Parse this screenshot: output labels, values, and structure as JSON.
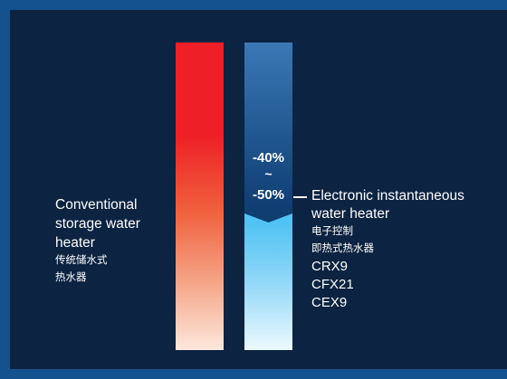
{
  "conventional": {
    "en_lines": [
      "Conventional",
      "storage water",
      "heater"
    ],
    "zh_lines": [
      "传统储水式",
      "热水器"
    ]
  },
  "savings": {
    "from": "-40%",
    "tilde": "~",
    "to": "-50%"
  },
  "electronic": {
    "en_lines": [
      "Electronic instantaneous",
      "water heater"
    ],
    "zh_lines": [
      "电子控制",
      "即热式热水器"
    ],
    "models": [
      "CRX9",
      "CFX21",
      "CEX9"
    ]
  },
  "colors": {
    "outer_frame": "#14528f",
    "panel": "#0c2341",
    "conventional_bar_top": "#ee1f26",
    "electronic_bar_top": "#2a649f",
    "electronic_bar_bottom": "#4fc3f3"
  }
}
